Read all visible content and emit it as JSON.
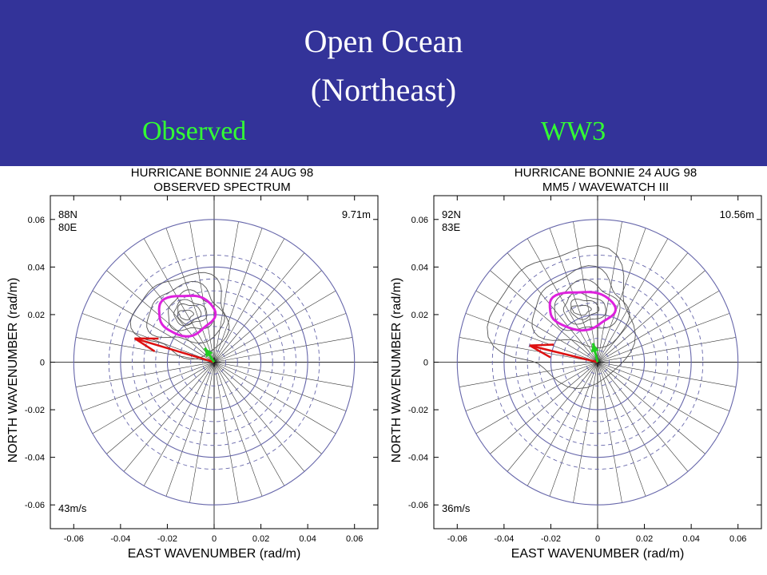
{
  "slide": {
    "title_line1": "Open Ocean",
    "title_line2": "(Northeast)",
    "label_left": "Observed",
    "label_right": "WW3"
  },
  "colors": {
    "banner": "#333399",
    "title": "#ffffff",
    "column_labels": "#33ff33",
    "rings": "#6666aa",
    "spectrum_contours": "#555555",
    "peak_contour": "#dd22dd",
    "wind_arrow": "#dd1111",
    "wave_arrow": "#22cc22"
  },
  "chart_data": [
    {
      "type": "polar-spectrum",
      "title": "HURRICANE BONNIE    24 AUG 98",
      "subtitle": "OBSERVED SPECTRUM",
      "xlabel": "EAST WAVENUMBER (rad/m)",
      "ylabel": "NORTH WAVENUMBER (rad/m)",
      "xlim": [
        -0.07,
        0.07
      ],
      "ylim": [
        -0.07,
        0.07
      ],
      "xticks": [
        "-0.06",
        "-0.04",
        "-0.02",
        "0",
        "0.02",
        "0.04",
        "0.06"
      ],
      "yticks": [
        "0.06",
        "0.04",
        "0.02",
        "0",
        "-0.02",
        "-0.04",
        "-0.06"
      ],
      "location_lat": "88N",
      "location_lon": "80E",
      "wave_height": "9.71m",
      "wind_speed": "43m/s",
      "rings_solid": [
        0.02,
        0.04,
        0.06
      ],
      "rings_dashed": [
        0.005,
        0.01,
        0.015,
        0.025,
        0.03,
        0.035,
        0.045
      ],
      "radial_spokes_deg": 10,
      "peak_center": [
        -0.012,
        0.02
      ],
      "wind_vector_end": [
        -0.034,
        0.01
      ],
      "wave_vector_end": [
        -0.004,
        0.006
      ]
    },
    {
      "type": "polar-spectrum",
      "title": "HURRICANE BONNIE    24 AUG 98",
      "subtitle": "MM5 / WAVEWATCH III",
      "xlabel": "EAST WAVENUMBER (rad/m)",
      "ylabel": "NORTH WAVENUMBER (rad/m)",
      "xlim": [
        -0.07,
        0.07
      ],
      "ylim": [
        -0.07,
        0.07
      ],
      "xticks": [
        "-0.06",
        "-0.04",
        "-0.02",
        "0",
        "0.02",
        "0.04",
        "0.06"
      ],
      "yticks": [
        "0.06",
        "0.04",
        "0.02",
        "0",
        "-0.02",
        "-0.04",
        "-0.06"
      ],
      "location_lat": "92N",
      "location_lon": "83E",
      "wave_height": "10.56m",
      "wind_speed": "36m/s",
      "rings_solid": [
        0.02,
        0.04,
        0.06
      ],
      "rings_dashed": [
        0.005,
        0.01,
        0.015,
        0.025,
        0.03,
        0.035,
        0.045
      ],
      "radial_spokes_deg": 10,
      "peak_center": [
        -0.007,
        0.022
      ],
      "wind_vector_end": [
        -0.029,
        0.007
      ],
      "wave_vector_end": [
        -0.002,
        0.008
      ]
    }
  ]
}
